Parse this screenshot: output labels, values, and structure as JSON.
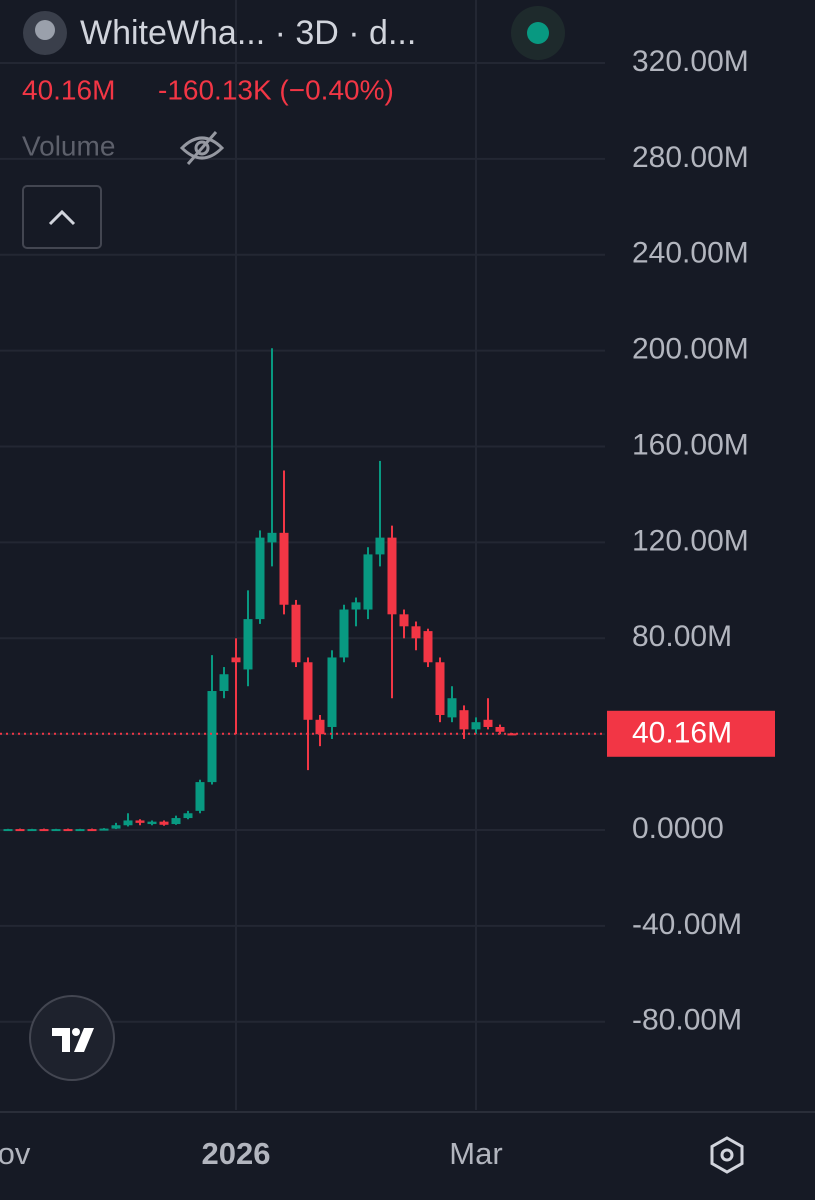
{
  "header": {
    "symbol": "WhiteWha... · 3D · d...",
    "change_label": "-160.13K (−0.40%)",
    "volume_label": "Volume"
  },
  "chart_data": {
    "type": "candlestick",
    "categories": [
      "ov",
      null,
      null,
      null,
      null,
      null,
      null,
      null,
      null,
      null,
      null,
      null,
      null,
      null,
      null,
      null,
      null,
      null,
      null,
      "2026",
      null,
      null,
      null,
      null,
      null,
      null,
      null,
      null,
      null,
      null,
      null,
      null,
      null,
      null,
      null,
      null,
      null,
      null,
      null,
      "Mar",
      null,
      null,
      null
    ],
    "open": [
      300000,
      400000,
      300000,
      400000,
      300000,
      400000,
      300000,
      400000,
      300000,
      600000,
      2000000,
      4000000,
      2500000,
      3500000,
      2500000,
      5000000,
      8000000,
      20000000,
      58000000,
      72000000,
      67000000,
      88000000,
      120000000,
      124000000,
      94000000,
      70000000,
      46000000,
      43000000,
      72000000,
      92000000,
      92000000,
      115000000,
      122000000,
      90000000,
      85000000,
      83000000,
      70000000,
      47000000,
      50000000,
      42000000,
      46000000,
      43000000,
      40320000
    ],
    "high": [
      500000,
      600000,
      500000,
      600000,
      500000,
      600000,
      500000,
      600000,
      800000,
      3000000,
      7000000,
      4500000,
      4000000,
      4000000,
      6000000,
      8000000,
      21000000,
      73000000,
      68000000,
      80000000,
      100000000,
      125000000,
      201000000,
      150000000,
      96000000,
      72000000,
      48000000,
      75000000,
      94000000,
      97000000,
      118000000,
      154000000,
      127000000,
      92000000,
      87000000,
      84000000,
      72000000,
      60000000,
      52000000,
      47000000,
      55000000,
      44000000,
      40500000
    ],
    "low": [
      200000,
      300000,
      200000,
      300000,
      200000,
      300000,
      200000,
      300000,
      200000,
      400000,
      1500000,
      2000000,
      2000000,
      1800000,
      2200000,
      4500000,
      7000000,
      19000000,
      55000000,
      40000000,
      60000000,
      86000000,
      110000000,
      90000000,
      68000000,
      25000000,
      35000000,
      38000000,
      70000000,
      85000000,
      88000000,
      110000000,
      55000000,
      80000000,
      75000000,
      68000000,
      45000000,
      45000000,
      38000000,
      40000000,
      42000000,
      40000000,
      40000000
    ],
    "close": [
      400000,
      300000,
      400000,
      300000,
      400000,
      300000,
      400000,
      300000,
      600000,
      2000000,
      4000000,
      3000000,
      3500000,
      2200000,
      5000000,
      7000000,
      20000000,
      58000000,
      65000000,
      70000000,
      88000000,
      122000000,
      124000000,
      94000000,
      70000000,
      46000000,
      40000000,
      72000000,
      92000000,
      95000000,
      115000000,
      122000000,
      90000000,
      85000000,
      80000000,
      70000000,
      48000000,
      55000000,
      42000000,
      45000000,
      43000000,
      41000000,
      40160000
    ],
    "up_color": "#089981",
    "down_color": "#f23645",
    "last_price": {
      "value": 40160000,
      "label": "40.16M"
    },
    "ylim": [
      -116800000,
      346300000
    ],
    "yticks": [
      {
        "value": -80000000,
        "label": "-80.00M"
      },
      {
        "value": -40000000,
        "label": "-40.00M"
      },
      {
        "value": 0,
        "label": "0.0000"
      },
      {
        "value": 40000000,
        "label": "40.00M"
      },
      {
        "value": 80000000,
        "label": "80.00M"
      },
      {
        "value": 120000000,
        "label": "120.00M"
      },
      {
        "value": 160000000,
        "label": "160.00M"
      },
      {
        "value": 200000000,
        "label": "200.00M"
      },
      {
        "value": 240000000,
        "label": "240.00M"
      },
      {
        "value": 280000000,
        "label": "280.00M"
      },
      {
        "value": 320000000,
        "label": "320.00M"
      }
    ],
    "grid": true
  }
}
